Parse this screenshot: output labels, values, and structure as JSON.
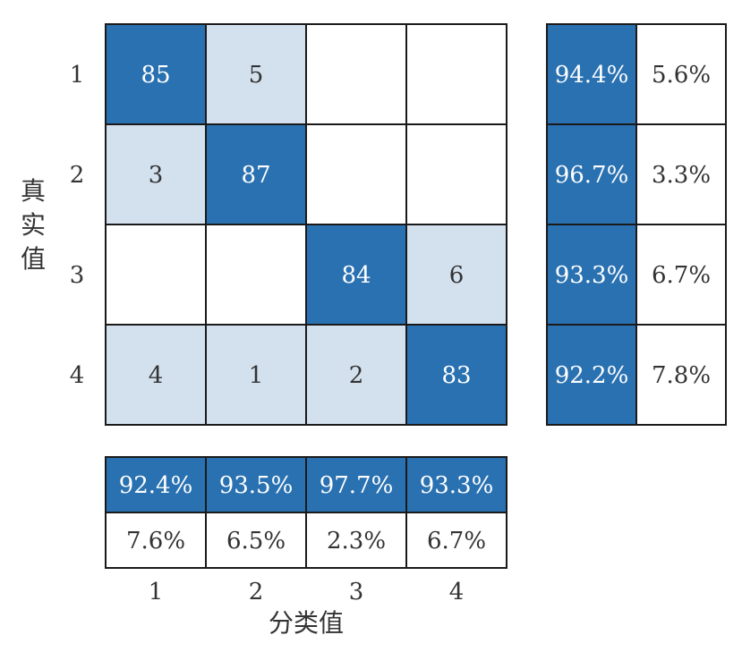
{
  "chart_data": {
    "type": "heatmap",
    "title": "",
    "xlabel": "分类值",
    "ylabel": "真实值",
    "x_categories": [
      "1",
      "2",
      "3",
      "4"
    ],
    "y_categories": [
      "1",
      "2",
      "3",
      "4"
    ],
    "matrix": [
      [
        85,
        5,
        null,
        null
      ],
      [
        3,
        87,
        null,
        null
      ],
      [
        null,
        null,
        84,
        6
      ],
      [
        4,
        1,
        2,
        83
      ]
    ],
    "row_summary": [
      [
        "94.4%",
        "5.6%"
      ],
      [
        "96.7%",
        "3.3%"
      ],
      [
        "93.3%",
        "6.7%"
      ],
      [
        "92.2%",
        "7.8%"
      ]
    ],
    "column_summary": [
      [
        "92.4%",
        "7.6%"
      ],
      [
        "93.5%",
        "6.5%"
      ],
      [
        "97.7%",
        "2.3%"
      ],
      [
        "93.3%",
        "6.7%"
      ]
    ],
    "colors": {
      "diagonal": "#2a71b1",
      "off_diagonal": "#d3e1ef",
      "empty": "#ffffff",
      "border": "#1a1a1a",
      "text_dark": "#333333",
      "text_light": "#ffffff"
    }
  }
}
